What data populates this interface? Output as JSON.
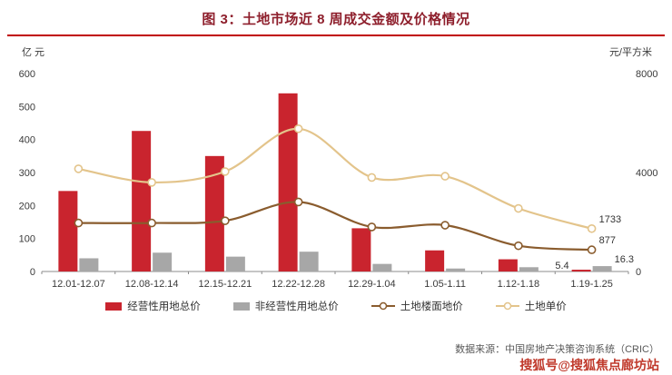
{
  "title": "图 3：土地市场近 8 周成交金额及价格情况",
  "left_axis_label": "亿 元",
  "right_axis_label": "元/平方米",
  "source_text": "数据来源：中国房地产决策咨询系统（CRIC）",
  "watermark": "搜狐号@搜狐焦点廊坊站",
  "colors": {
    "title": "#8E1F2C",
    "title_rule": "#C00000",
    "axis_text": "#3a3a3a",
    "axis_line": "#8c8c8c",
    "watermark": "#C0392B",
    "source": "#595959"
  },
  "chart_data": {
    "type": "bar",
    "subtype": "combo-bar-line-dual-axis",
    "categories": [
      "12.01-12.07",
      "12.08-12.14",
      "12.15-12.21",
      "12.22-12.28",
      "12.29-1.04",
      "1.05-1.11",
      "1.12-1.18",
      "1.19-1.25"
    ],
    "series": [
      {
        "name": "经营性用地总价",
        "type": "bar",
        "axis": "left",
        "color": "#C9242E",
        "values": [
          244,
          426,
          350,
          540,
          131,
          64,
          37,
          5.4
        ],
        "end_label": "5.4"
      },
      {
        "name": "非经营性用地总价",
        "type": "bar",
        "axis": "left",
        "color": "#A7A7A7",
        "values": [
          40,
          57,
          45,
          60,
          23,
          9,
          13,
          16.3
        ],
        "end_label": "16.3"
      },
      {
        "name": "土地楼面地价",
        "type": "line",
        "axis": "right",
        "color": "#8A5C2E",
        "values": [
          1960,
          1960,
          2050,
          2810,
          1800,
          1870,
          1040,
          877
        ],
        "end_label": "877"
      },
      {
        "name": "土地单价",
        "type": "line",
        "axis": "right",
        "color": "#E3C48B",
        "values": [
          4150,
          3600,
          4040,
          5770,
          3800,
          3850,
          2550,
          1733
        ],
        "end_label": "1733"
      }
    ],
    "left_ylim": [
      0,
      600
    ],
    "left_ticks": [
      0,
      100,
      200,
      300,
      400,
      500,
      600
    ],
    "right_ylim": [
      0,
      8000
    ],
    "right_ticks": [
      0,
      4000,
      8000
    ],
    "grid": false,
    "legend_position": "bottom"
  }
}
